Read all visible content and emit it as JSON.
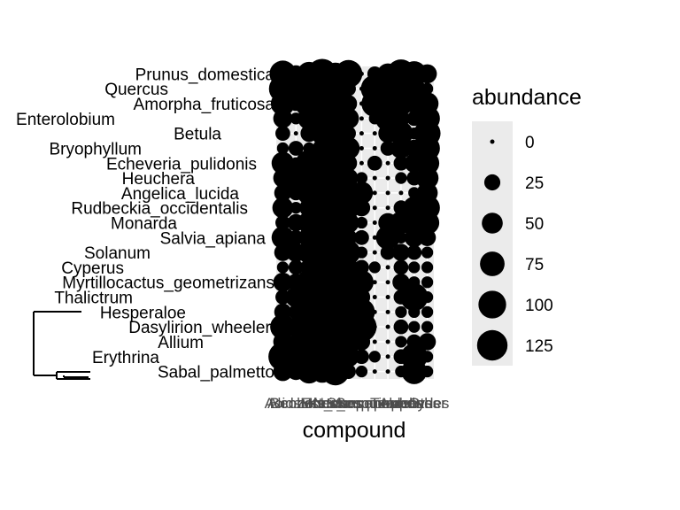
{
  "chart_data": {
    "type": "scatter",
    "subtype": "bubble-matrix-with-dendrogram",
    "xlabel": "compound",
    "ylabel": "",
    "legend": {
      "title": "abundance",
      "placement": "right",
      "values": [
        0,
        25,
        50,
        75,
        100,
        125
      ]
    },
    "grid": true,
    "x_categories": [
      "Acids",
      "Alcohols",
      "Benzenoids",
      "Esters",
      "Ketones",
      "Monoterpenes",
      "N_compounds",
      "S_compounds",
      "Sesquiterpenes",
      "Terpenes",
      "Aldehydes",
      "Other"
    ],
    "y_categories": [
      "Prunus_domestica",
      "Quercus",
      "Amorpha_fruticosa",
      "Enterolobium",
      "Betula",
      "Bryophyllum",
      "Echeveria_pulidonis",
      "Heuchera",
      "Angelica_lucida",
      "Rudbeckia_occidentalis",
      "Monarda",
      "Salvia_apiana",
      "Solanum",
      "Cyperus",
      "Myrtillocactus_geometrizans",
      "Thalictrum",
      "Hesperaloe",
      "Dasylirion_wheeleri",
      "Allium",
      "Erythrina",
      "Sabal_palmetto"
    ],
    "abundance_matrix": [
      [
        90,
        30,
        70,
        120,
        60,
        100,
        0,
        20,
        50,
        110,
        80,
        40
      ],
      [
        100,
        60,
        110,
        50,
        70,
        20,
        0,
        100,
        40,
        30,
        60,
        10
      ],
      [
        70,
        20,
        100,
        40,
        110,
        30,
        0,
        90,
        20,
        70,
        40,
        60
      ],
      [
        40,
        10,
        60,
        90,
        100,
        50,
        0,
        10,
        80,
        30,
        20,
        80
      ],
      [
        20,
        0,
        30,
        60,
        80,
        20,
        0,
        0,
        40,
        70,
        10,
        90
      ],
      [
        10,
        20,
        10,
        40,
        70,
        60,
        0,
        0,
        20,
        50,
        30,
        80
      ],
      [
        60,
        10,
        90,
        120,
        60,
        30,
        0,
        20,
        0,
        20,
        40,
        70
      ],
      [
        40,
        80,
        50,
        110,
        100,
        40,
        10,
        0,
        0,
        10,
        20,
        60
      ],
      [
        30,
        20,
        70,
        90,
        50,
        20,
        60,
        0,
        0,
        0,
        10,
        50
      ],
      [
        50,
        10,
        40,
        80,
        110,
        60,
        30,
        0,
        0,
        20,
        60,
        80
      ],
      [
        20,
        30,
        60,
        40,
        90,
        50,
        10,
        0,
        40,
        60,
        90,
        70
      ],
      [
        60,
        20,
        50,
        100,
        60,
        30,
        20,
        0,
        70,
        10,
        40,
        30
      ],
      [
        30,
        40,
        60,
        80,
        40,
        70,
        10,
        0,
        20,
        30,
        20,
        10
      ],
      [
        10,
        20,
        30,
        90,
        110,
        40,
        20,
        10,
        0,
        20,
        10,
        10
      ],
      [
        40,
        30,
        80,
        60,
        100,
        50,
        70,
        0,
        0,
        30,
        10,
        10
      ],
      [
        20,
        50,
        90,
        60,
        70,
        80,
        30,
        0,
        0,
        20,
        100,
        10
      ],
      [
        30,
        20,
        70,
        100,
        60,
        40,
        90,
        0,
        0,
        10,
        10,
        10
      ],
      [
        80,
        40,
        110,
        120,
        50,
        90,
        120,
        0,
        0,
        20,
        10,
        10
      ],
      [
        40,
        20,
        60,
        120,
        100,
        80,
        30,
        0,
        0,
        10,
        20,
        30
      ],
      [
        110,
        40,
        90,
        130,
        60,
        50,
        20,
        10,
        0,
        20,
        90,
        10
      ],
      [
        40,
        30,
        70,
        60,
        100,
        20,
        10,
        0,
        0,
        10,
        80,
        10
      ]
    ]
  }
}
